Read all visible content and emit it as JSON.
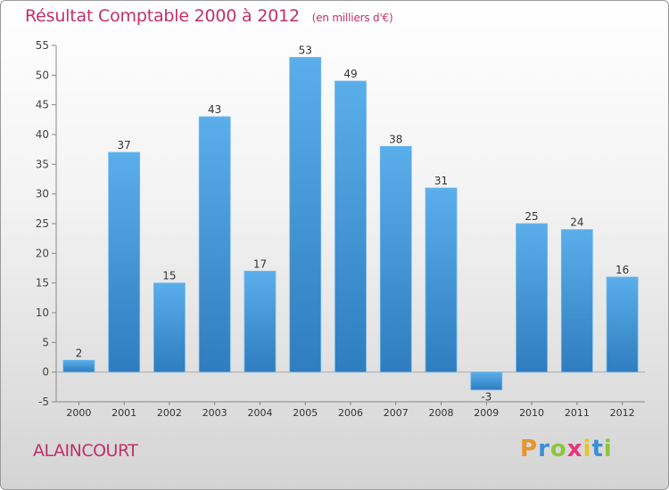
{
  "chart_data": {
    "type": "bar",
    "title": "Résultat Comptable 2000 à 2012",
    "subtitle": "(en milliers d'€)",
    "categories": [
      "2000",
      "2001",
      "2002",
      "2003",
      "2004",
      "2005",
      "2006",
      "2007",
      "2008",
      "2009",
      "2010",
      "2011",
      "2012"
    ],
    "values": [
      2,
      37,
      15,
      43,
      17,
      53,
      49,
      38,
      31,
      -3,
      25,
      24,
      16
    ],
    "ylim": [
      -5,
      55
    ],
    "yticks": [
      -5,
      0,
      5,
      10,
      15,
      20,
      25,
      30,
      35,
      40,
      45,
      50,
      55
    ],
    "xlabel": "",
    "ylabel": "",
    "grid": false,
    "bar_color": "#3a8fd6"
  },
  "footer": {
    "commune": "ALAINCOURT",
    "logo_letters": [
      "P",
      "r",
      "o",
      "x",
      "i",
      "t",
      "i"
    ],
    "logo_colors": [
      "#e8952a",
      "#3a8fd6",
      "#8cc63e",
      "#e8367a",
      "#e8c52a",
      "#3a8fd6",
      "#8cc63e"
    ]
  }
}
